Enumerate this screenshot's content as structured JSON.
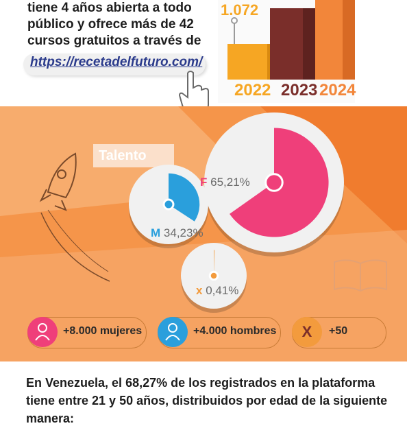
{
  "intro": {
    "lines": [
      "tiene 4 años abierta a todo",
      "público y ofrece más de 42",
      "cursos gratuitos a través de"
    ],
    "url": "https://recetadelfuturo.com/"
  },
  "growth_chart": {
    "value_label": "1.072",
    "years": [
      "2022",
      "2023",
      "2024"
    ]
  },
  "talent_section": {
    "title": "Talento"
  },
  "chart_data": {
    "type": "pie",
    "categories": [
      "F",
      "M",
      "x"
    ],
    "values": [
      65.21,
      34.23,
      0.41
    ],
    "labels": [
      "65,21%",
      "34,23%",
      "0,41%"
    ],
    "colors": [
      "#ef3f7a",
      "#2a9fdc",
      "#f39b3d"
    ]
  },
  "counts": {
    "women": "+8.000 mujeres",
    "men": "+4.000 hombres",
    "x_icon": "X",
    "other": "+50"
  },
  "bottom": {
    "lines": [
      "En Venezuela, el 68,27% de los registrados en la plataforma",
      "tiene entre 21 y 50 años, distribuidos por edad de la siguiente",
      "manera:"
    ]
  },
  "colors": {
    "orange": "#f2863a",
    "pink": "#ef3f7a",
    "blue": "#2a9fdc",
    "dark_red": "#7a2e2a",
    "gold": "#f6a623"
  }
}
